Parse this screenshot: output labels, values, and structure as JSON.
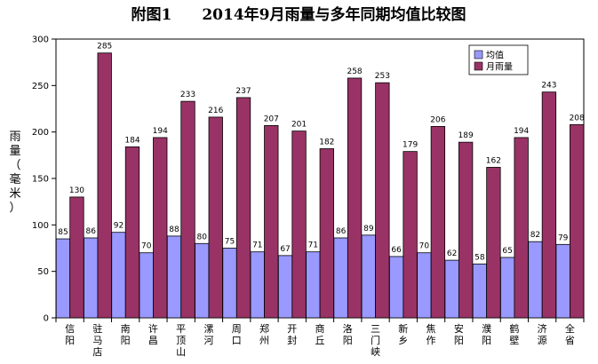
{
  "chart_data": {
    "type": "bar",
    "title": "附图1　　2014年9月雨量与多年同期均值比较图",
    "ylabel": "雨量（毫米）",
    "ylim": [
      0,
      300
    ],
    "yticks": [
      0,
      50,
      100,
      150,
      200,
      250,
      300
    ],
    "grid": false,
    "legend_position": "top-right",
    "categories": [
      "信阳",
      "驻马店",
      "南阳",
      "许昌",
      "平顶山",
      "漯河",
      "周口",
      "郑州",
      "开封",
      "商丘",
      "洛阳",
      "三门峡",
      "新乡",
      "焦作",
      "安阳",
      "濮阳",
      "鹤壁",
      "济源",
      "全省"
    ],
    "series": [
      {
        "name": "均值",
        "color": "#9999ff",
        "values": [
          85,
          86,
          92,
          70,
          88,
          80,
          75,
          71,
          67,
          71,
          86,
          89,
          66,
          70,
          62,
          58,
          65,
          82,
          79
        ]
      },
      {
        "name": "月雨量",
        "color": "#993366",
        "values": [
          130,
          285,
          184,
          194,
          233,
          216,
          237,
          207,
          201,
          182,
          258,
          253,
          179,
          206,
          189,
          162,
          194,
          243,
          208
        ]
      }
    ]
  }
}
